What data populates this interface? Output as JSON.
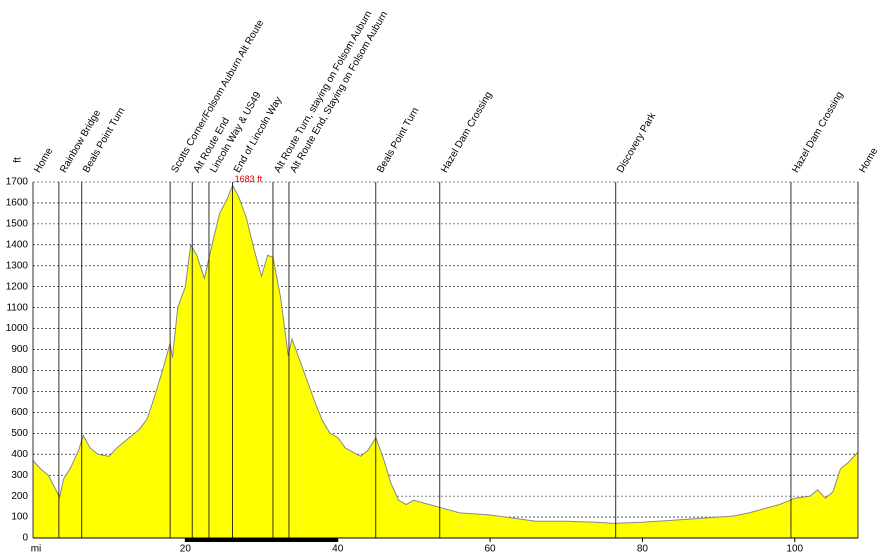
{
  "chart_data": {
    "type": "area",
    "y_label": "ft",
    "x_label": "mi",
    "color": "#ffff00",
    "line_color": "#888888",
    "grid": true,
    "xlim": [
      0,
      108.3
    ],
    "ylim": [
      0,
      1700
    ],
    "xticks": [
      20,
      40,
      60,
      80,
      100
    ],
    "yticks": [
      0,
      100,
      200,
      300,
      400,
      500,
      600,
      700,
      800,
      900,
      1000,
      1100,
      1200,
      1300,
      1400,
      1500,
      1600,
      1700
    ],
    "x": [
      0,
      1,
      2,
      3.5,
      4,
      5,
      6,
      6.6,
      7.5,
      8.5,
      10,
      11,
      12,
      14,
      15,
      16,
      17,
      18,
      18.3,
      19,
      20,
      20.7,
      21.5,
      22.5,
      23.5,
      24.5,
      25.5,
      26.2,
      27,
      28,
      29,
      30,
      30.8,
      31.5,
      32.5,
      33.5,
      34,
      35,
      36,
      37,
      38,
      39,
      40,
      41,
      42,
      43,
      44,
      45,
      46,
      47,
      48,
      49,
      50,
      52,
      54,
      56,
      58,
      60,
      62,
      64,
      66,
      70,
      74,
      76,
      80,
      84,
      88,
      92,
      94,
      96,
      98,
      100,
      102,
      103,
      104,
      105,
      106,
      107,
      108.3
    ],
    "values": [
      370,
      330,
      300,
      195,
      280,
      340,
      420,
      490,
      430,
      400,
      390,
      430,
      460,
      520,
      570,
      680,
      800,
      930,
      860,
      1100,
      1200,
      1400,
      1350,
      1240,
      1400,
      1550,
      1620,
      1683,
      1630,
      1530,
      1380,
      1250,
      1350,
      1340,
      1150,
      870,
      950,
      850,
      750,
      650,
      560,
      500,
      480,
      430,
      410,
      390,
      420,
      480,
      380,
      260,
      180,
      160,
      180,
      160,
      140,
      120,
      115,
      110,
      100,
      90,
      80,
      80,
      75,
      70,
      75,
      85,
      95,
      105,
      120,
      140,
      160,
      190,
      200,
      230,
      190,
      220,
      330,
      360,
      410
    ],
    "max_annotation": {
      "x": 26.2,
      "value": 1683,
      "label": "1683 ft"
    },
    "waypoints": [
      {
        "x": 0,
        "label": "Home"
      },
      {
        "x": 3.4,
        "label": "Rainbow Bridge"
      },
      {
        "x": 6.4,
        "label": "Beals Point Turn"
      },
      {
        "x": 18.0,
        "label": "Scotts Corner/Folsom Auburn Alt Route"
      },
      {
        "x": 20.9,
        "label": "Alt Route End"
      },
      {
        "x": 23.1,
        "label": "Lincoln Way & US49"
      },
      {
        "x": 26.2,
        "label": "End of Lincoln Way"
      },
      {
        "x": 31.5,
        "label": "Alt Route Turn, staying on Folsom Auburn"
      },
      {
        "x": 33.6,
        "label": "Alt Route End, Staying on Folsom Auburn"
      },
      {
        "x": 45.0,
        "label": "Beals Point Turn"
      },
      {
        "x": 53.4,
        "label": "Hazel Dam Crossing"
      },
      {
        "x": 76.5,
        "label": "Discovery Park"
      },
      {
        "x": 99.5,
        "label": "Hazel Dam Crossing"
      },
      {
        "x": 108.3,
        "label": "Home"
      }
    ]
  }
}
